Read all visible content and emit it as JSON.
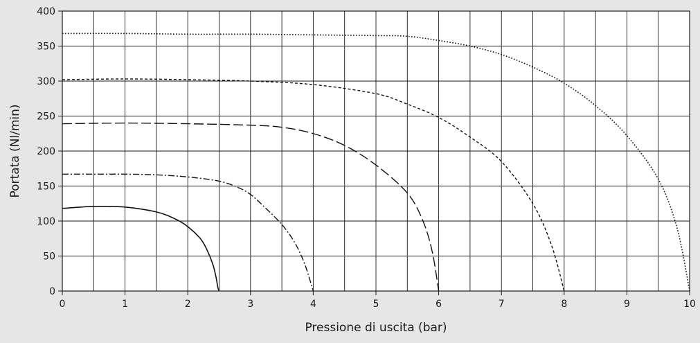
{
  "chart_data": {
    "type": "line",
    "xlabel": "Pressione di uscita (bar)",
    "ylabel": "Portata (Nl/min)",
    "xlim": [
      0,
      10
    ],
    "ylim": [
      0,
      400
    ],
    "x_ticks": [
      "0",
      "1",
      "2",
      "3",
      "4",
      "5",
      "6",
      "7",
      "8",
      "9",
      "10"
    ],
    "y_ticks": [
      "0",
      "50",
      "100",
      "150",
      "200",
      "250",
      "300",
      "350",
      "400"
    ],
    "grid": {
      "vertical_step": 0.5,
      "horizontal_step": 50
    },
    "series": [
      {
        "style": "solid",
        "points": [
          [
            0,
            118
          ],
          [
            0.3,
            120
          ],
          [
            0.6,
            121
          ],
          [
            1.0,
            120
          ],
          [
            1.5,
            113
          ],
          [
            1.8,
            103
          ],
          [
            2.0,
            92
          ],
          [
            2.2,
            75
          ],
          [
            2.3,
            60
          ],
          [
            2.4,
            38
          ],
          [
            2.45,
            20
          ],
          [
            2.48,
            5
          ],
          [
            2.5,
            0
          ]
        ]
      },
      {
        "style": "dash-dot",
        "points": [
          [
            0,
            167
          ],
          [
            0.5,
            167
          ],
          [
            1.0,
            167
          ],
          [
            1.5,
            166
          ],
          [
            2.0,
            163
          ],
          [
            2.5,
            157
          ],
          [
            2.8,
            148
          ],
          [
            3.0,
            138
          ],
          [
            3.2,
            122
          ],
          [
            3.5,
            95
          ],
          [
            3.7,
            70
          ],
          [
            3.85,
            42
          ],
          [
            3.95,
            15
          ],
          [
            4.0,
            0
          ]
        ]
      },
      {
        "style": "long-dash",
        "points": [
          [
            0,
            239
          ],
          [
            1.0,
            240
          ],
          [
            2.0,
            239
          ],
          [
            3.0,
            237
          ],
          [
            3.5,
            234
          ],
          [
            4.0,
            225
          ],
          [
            4.5,
            208
          ],
          [
            5.0,
            180
          ],
          [
            5.5,
            140
          ],
          [
            5.75,
            100
          ],
          [
            5.9,
            55
          ],
          [
            6.0,
            0
          ]
        ]
      },
      {
        "style": "short-dash",
        "points": [
          [
            0,
            302
          ],
          [
            1.0,
            303
          ],
          [
            2.0,
            302
          ],
          [
            3.0,
            300
          ],
          [
            4.0,
            295
          ],
          [
            5.0,
            282
          ],
          [
            5.5,
            267
          ],
          [
            6.0,
            248
          ],
          [
            6.5,
            220
          ],
          [
            7.0,
            185
          ],
          [
            7.5,
            125
          ],
          [
            7.8,
            65
          ],
          [
            8.0,
            0
          ]
        ]
      },
      {
        "style": "dotted",
        "points": [
          [
            0,
            368
          ],
          [
            1.0,
            368
          ],
          [
            2.0,
            367
          ],
          [
            3.0,
            367
          ],
          [
            4.0,
            366
          ],
          [
            5.0,
            365
          ],
          [
            5.5,
            364
          ],
          [
            6.0,
            358
          ],
          [
            6.5,
            350
          ],
          [
            7.0,
            338
          ],
          [
            7.5,
            320
          ],
          [
            8.0,
            297
          ],
          [
            8.5,
            265
          ],
          [
            9.0,
            222
          ],
          [
            9.5,
            160
          ],
          [
            9.8,
            90
          ],
          [
            10.0,
            0
          ]
        ]
      }
    ]
  }
}
